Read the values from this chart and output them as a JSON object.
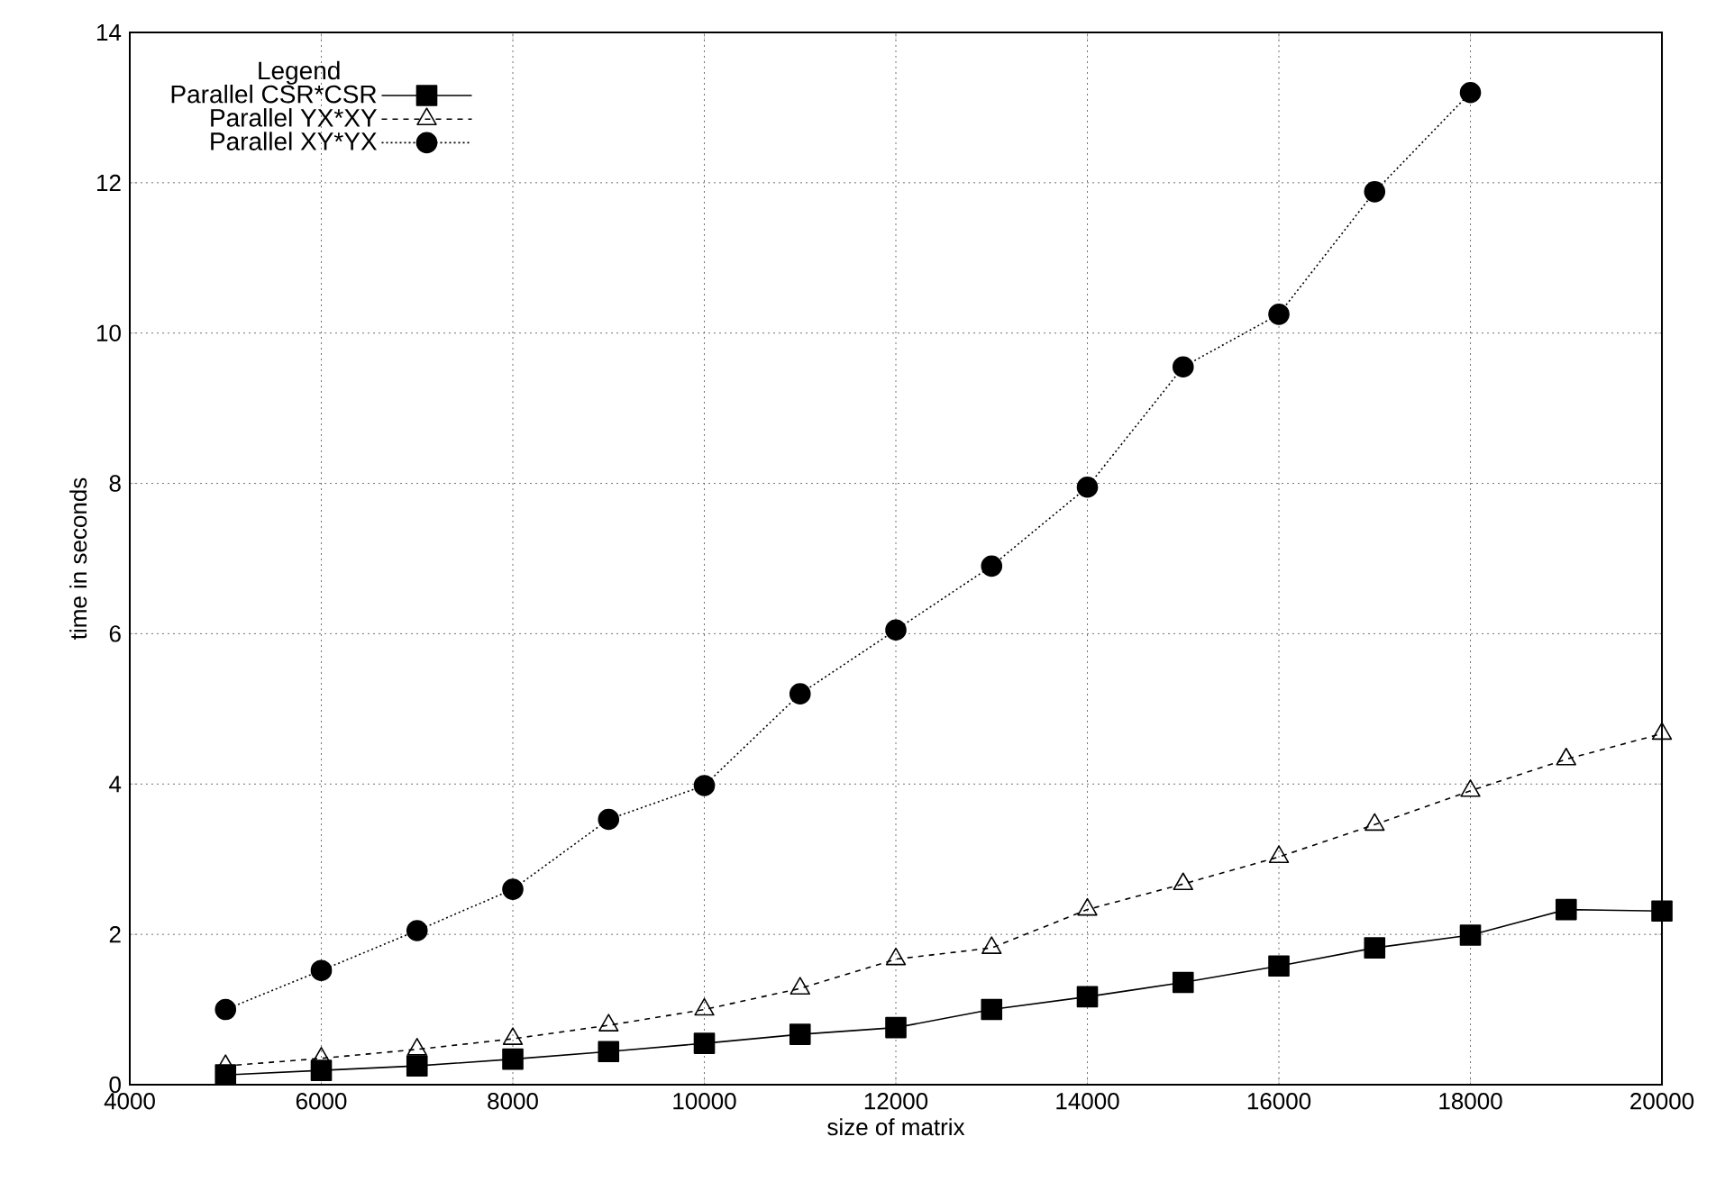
{
  "chart_data": {
    "type": "line",
    "xlabel": "size of matrix",
    "ylabel": "time in seconds",
    "legend_title": "Legend",
    "legend": "top left",
    "grid": true,
    "xlim": [
      4000,
      20000
    ],
    "xticks": [
      4000,
      6000,
      8000,
      10000,
      12000,
      14000,
      16000,
      18000,
      20000
    ],
    "ylim": [
      0,
      14
    ],
    "yticks": [
      0,
      2,
      4,
      6,
      8,
      10,
      12,
      14
    ],
    "series": [
      {
        "name": "Parallel CSR*CSR",
        "color": "#000000",
        "marker": "square",
        "line_style": "solid",
        "x": [
          5000,
          6000,
          7000,
          8000,
          9000,
          10000,
          11000,
          12000,
          13000,
          14000,
          15000,
          16000,
          17000,
          18000,
          19000,
          20000
        ],
        "values": [
          0.13,
          0.19,
          0.25,
          0.34,
          0.44,
          0.55,
          0.67,
          0.76,
          1.0,
          1.17,
          1.36,
          1.58,
          1.82,
          1.99,
          2.33,
          2.31
        ]
      },
      {
        "name": "Parallel YX*XY",
        "color": "#000000",
        "marker": "triangle",
        "line_style": "dashed",
        "x": [
          5000,
          6000,
          7000,
          8000,
          9000,
          10000,
          11000,
          12000,
          13000,
          14000,
          15000,
          16000,
          17000,
          18000,
          19000,
          20000
        ],
        "values": [
          0.25,
          0.35,
          0.47,
          0.61,
          0.79,
          1.0,
          1.28,
          1.67,
          1.82,
          2.33,
          2.67,
          3.03,
          3.46,
          3.91,
          4.33,
          4.67
        ]
      },
      {
        "name": "Parallel XY*YX",
        "color": "#000000",
        "marker": "circle",
        "line_style": "dotted",
        "x": [
          5000,
          6000,
          7000,
          8000,
          9000,
          10000,
          11000,
          12000,
          13000,
          14000,
          15000,
          16000,
          17000,
          18000
        ],
        "values": [
          1.0,
          1.52,
          2.05,
          2.6,
          3.53,
          3.98,
          5.2,
          6.05,
          6.9,
          7.95,
          9.55,
          10.25,
          11.88,
          13.2
        ]
      }
    ]
  }
}
